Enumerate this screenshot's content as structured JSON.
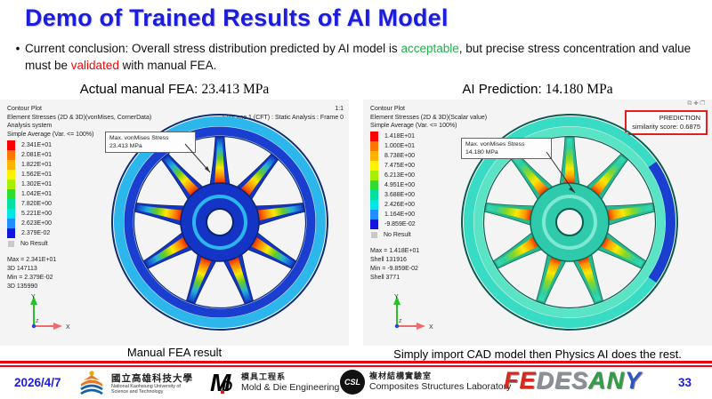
{
  "slide": {
    "title": "Demo of Trained Results of AI Model",
    "bullet": {
      "marker": "•",
      "part1": "Current conclusion: Overall stress distribution predicted by AI model is ",
      "highlight_green": "acceptable",
      "part2": ", but precise stress concentration and value must be ",
      "highlight_red": "validated",
      "part3": " with manual FEA."
    },
    "colors": {
      "title_blue": "#1c1ce0",
      "green": "#22b14c",
      "red": "#ff0000",
      "footer_rule_red": "#ee0011",
      "panel_background": "#f4f4f4"
    }
  },
  "icons": {
    "copy": "⧉",
    "plus": "✚",
    "window": "❐"
  },
  "axis": {
    "x": "X",
    "y": "Y",
    "z": "Z"
  },
  "panels": [
    {
      "header_label": "Actual manual FEA: ",
      "header_value": "23.413 MPa",
      "info_lines": [
        "Contour Plot",
        "Element Stresses (2D & 3D)(vonMises, CornerData)",
        "Analysis system",
        "Simple Average (Var. <= 100%)"
      ],
      "corner_scale": "1:1",
      "corner_subcase": "Subcase 1 (CFT) : Static Analysis : Frame 0",
      "legend": {
        "labels": [
          "2.341E+01",
          "2.081E+01",
          "1.822E+01",
          "1.562E+01",
          "1.302E+01",
          "1.042E+01",
          "7.820E+00",
          "5.221E+00",
          "2.623E+00",
          "2.379E-02"
        ],
        "colors": [
          "#ff0000",
          "#ff7700",
          "#ffb300",
          "#fff200",
          "#a9f000",
          "#2fdc30",
          "#00e0a0",
          "#00e5e5",
          "#1f8fff",
          "#1414e0"
        ],
        "no_result_label": "No Result",
        "no_result_color": "#c9c9c9"
      },
      "stats": [
        "Max = 2.341E+01",
        "3D 147113",
        "Min = 2.379E-02",
        "3D 135990"
      ],
      "callout": {
        "line1": "Max. vonMises Stress",
        "line2": "23.413 MPa"
      },
      "caption": "Manual FEA result"
    },
    {
      "header_label": "AI Prediction: ",
      "header_value": "14.180 MPa",
      "info_lines": [
        "Contour Plot",
        "Element Stresses (2D & 3D)(Scalar value)",
        "Simple Average (Var. <= 100%)"
      ],
      "prediction_box": {
        "line1": "PREDICTION",
        "line2": "similarity score: 0.6875",
        "border_color": "#e02020"
      },
      "legend": {
        "labels": [
          "1.418E+01",
          "1.000E+01",
          "8.738E+00",
          "7.475E+00",
          "6.213E+00",
          "4.951E+00",
          "3.688E+00",
          "2.426E+00",
          "1.164E+00",
          "-9.859E-02"
        ],
        "colors": [
          "#ff0000",
          "#ff7700",
          "#ffb300",
          "#fff200",
          "#a9f000",
          "#2fdc30",
          "#00e0a0",
          "#00e5e5",
          "#1f8fff",
          "#1414e0"
        ],
        "no_result_label": "No Result",
        "no_result_color": "#c9c9c9"
      },
      "stats": [
        "Max = 1.418E+01",
        "Shell 131916",
        "Min = -9.859E-02",
        "Shell 3771"
      ],
      "callout": {
        "line1": "Max. vonMises Stress",
        "line2": "14.180 MPa"
      },
      "caption": "Simply import CAD model then Physics AI does the rest."
    }
  ],
  "footer": {
    "date": "2026/4/7",
    "page": "33",
    "university": {
      "zh": "國立高雄科技大學",
      "en1": "National Kaohsiung University of",
      "en2": "Science and Technology"
    },
    "department": {
      "zh": "模具工程系",
      "en": "Mold & Die Engineering",
      "logo_text_m": "M",
      "logo_text_d": "D"
    },
    "laboratory": {
      "zh": "複材結構實驗室",
      "en": "Composites Structures Laboratory",
      "logo_text": "CSL"
    },
    "logo_word": {
      "letters": [
        {
          "ch": "F",
          "color": "#d5281e"
        },
        {
          "ch": "E",
          "color": "#d5281e"
        },
        {
          "ch": "D",
          "color": "#8a8f98"
        },
        {
          "ch": "E",
          "color": "#8a8f98"
        },
        {
          "ch": "S",
          "color": "#8a8f98"
        },
        {
          "ch": "A",
          "color": "#2f9e44"
        },
        {
          "ch": "N",
          "color": "#2f9e44"
        },
        {
          "ch": "Y",
          "color": "#2f54c4"
        }
      ]
    }
  }
}
